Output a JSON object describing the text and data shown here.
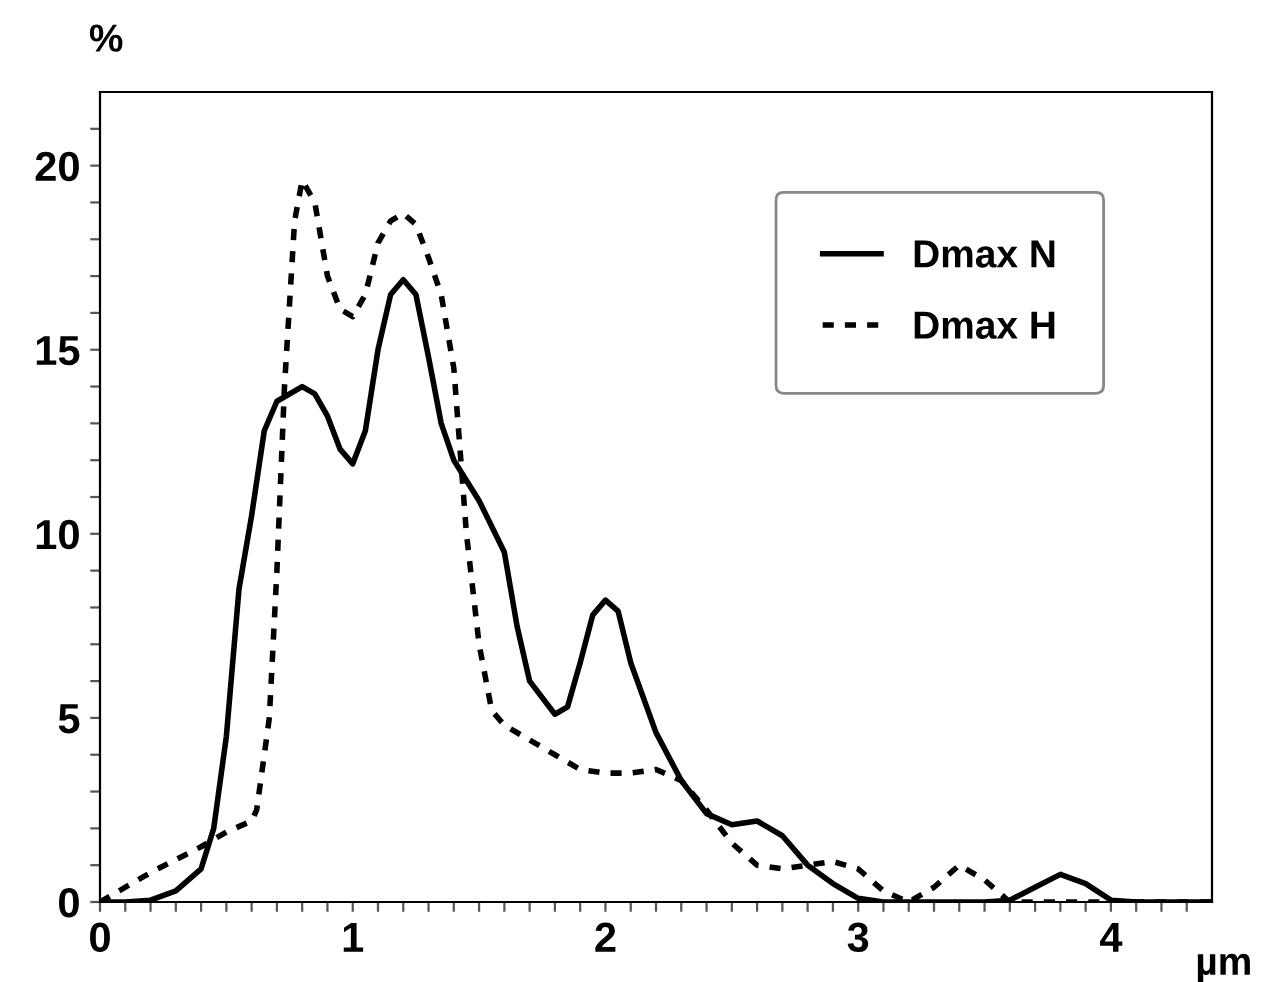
{
  "chart_data": {
    "type": "line",
    "xlabel": "µm",
    "ylabel": "%",
    "xlim": [
      0,
      4.4
    ],
    "ylim": [
      0,
      22
    ],
    "xticks": [
      0,
      {
        "value": 0.1,
        "label": null
      },
      {
        "value": 0.2,
        "label": null
      },
      {
        "value": 0.3,
        "label": null
      },
      {
        "value": 0.4,
        "label": null
      },
      {
        "value": 0.5,
        "label": null
      },
      {
        "value": 0.6,
        "label": null
      },
      {
        "value": 0.7,
        "label": null
      },
      {
        "value": 0.8,
        "label": null
      },
      {
        "value": 0.9,
        "label": null
      },
      1,
      {
        "value": 1.1,
        "label": null
      },
      {
        "value": 1.2,
        "label": null
      },
      {
        "value": 1.3,
        "label": null
      },
      {
        "value": 1.4,
        "label": null
      },
      {
        "value": 1.5,
        "label": null
      },
      {
        "value": 1.6,
        "label": null
      },
      {
        "value": 1.7,
        "label": null
      },
      {
        "value": 1.8,
        "label": null
      },
      {
        "value": 1.9,
        "label": null
      },
      2,
      {
        "value": 2.1,
        "label": null
      },
      {
        "value": 2.2,
        "label": null
      },
      {
        "value": 2.3,
        "label": null
      },
      {
        "value": 2.4,
        "label": null
      },
      {
        "value": 2.5,
        "label": null
      },
      {
        "value": 2.6,
        "label": null
      },
      {
        "value": 2.7,
        "label": null
      },
      {
        "value": 2.8,
        "label": null
      },
      {
        "value": 2.9,
        "label": null
      },
      3,
      {
        "value": 3.1,
        "label": null
      },
      {
        "value": 3.2,
        "label": null
      },
      {
        "value": 3.3,
        "label": null
      },
      {
        "value": 3.4,
        "label": null
      },
      {
        "value": 3.5,
        "label": null
      },
      {
        "value": 3.6,
        "label": null
      },
      {
        "value": 3.7,
        "label": null
      },
      {
        "value": 3.8,
        "label": null
      },
      {
        "value": 3.9,
        "label": null
      },
      4,
      {
        "value": 4.1,
        "label": null
      },
      {
        "value": 4.2,
        "label": null
      },
      {
        "value": 4.3,
        "label": null
      }
    ],
    "yticks": [
      0,
      {
        "value": 1,
        "label": null
      },
      {
        "value": 2,
        "label": null
      },
      {
        "value": 3,
        "label": null
      },
      {
        "value": 4,
        "label": null
      },
      5,
      {
        "value": 6,
        "label": null
      },
      {
        "value": 7,
        "label": null
      },
      {
        "value": 8,
        "label": null
      },
      {
        "value": 9,
        "label": null
      },
      10,
      {
        "value": 11,
        "label": null
      },
      {
        "value": 12,
        "label": null
      },
      {
        "value": 13,
        "label": null
      },
      {
        "value": 14,
        "label": null
      },
      15,
      {
        "value": 16,
        "label": null
      },
      {
        "value": 17,
        "label": null
      },
      {
        "value": 18,
        "label": null
      },
      {
        "value": 19,
        "label": null
      },
      20,
      {
        "value": 21,
        "label": null
      }
    ],
    "grid": false,
    "legend": "top right",
    "series": [
      {
        "name": "Dmax N",
        "color": "#000000",
        "line_style": "solid",
        "x": [
          0,
          0.1,
          0.2,
          0.3,
          0.4,
          0.45,
          0.5,
          0.55,
          0.6,
          0.65,
          0.7,
          0.8,
          0.85,
          0.9,
          0.95,
          1.0,
          1.05,
          1.1,
          1.15,
          1.2,
          1.25,
          1.3,
          1.35,
          1.4,
          1.5,
          1.6,
          1.65,
          1.7,
          1.8,
          1.85,
          1.9,
          1.95,
          2.0,
          2.05,
          2.1,
          2.2,
          2.3,
          2.4,
          2.5,
          2.6,
          2.7,
          2.8,
          2.9,
          3.0,
          3.1,
          3.5,
          3.6,
          3.7,
          3.8,
          3.9,
          4.0,
          4.1,
          4.4
        ],
        "values": [
          0,
          0,
          0.05,
          0.3,
          0.9,
          2,
          4.5,
          8.5,
          10.5,
          12.8,
          13.6,
          14,
          13.8,
          13.2,
          12.3,
          11.9,
          12.8,
          15,
          16.5,
          16.9,
          16.5,
          14.8,
          13,
          12,
          10.9,
          9.5,
          7.5,
          6,
          5.1,
          5.3,
          6.5,
          7.8,
          8.2,
          7.9,
          6.5,
          4.6,
          3.3,
          2.4,
          2.1,
          2.2,
          1.8,
          1.0,
          0.5,
          0.1,
          0,
          0,
          0.05,
          0.4,
          0.75,
          0.5,
          0.05,
          0,
          0
        ]
      },
      {
        "name": "Dmax H",
        "color": "#000000",
        "line_style": "dotted",
        "x": [
          0,
          0.05,
          0.2,
          0.4,
          0.5,
          0.6,
          0.62,
          0.67,
          0.7,
          0.73,
          0.77,
          0.8,
          0.85,
          0.9,
          0.95,
          1.0,
          1.05,
          1.1,
          1.15,
          1.2,
          1.25,
          1.3,
          1.35,
          1.4,
          1.45,
          1.5,
          1.55,
          1.6,
          1.7,
          1.8,
          1.9,
          2.0,
          2.1,
          2.2,
          2.3,
          2.4,
          2.5,
          2.6,
          2.7,
          2.8,
          2.9,
          3.0,
          3.1,
          3.2,
          3.3,
          3.4,
          3.5,
          3.6,
          3.7,
          4.0,
          4.4
        ],
        "values": [
          0,
          0.2,
          0.8,
          1.5,
          1.9,
          2.2,
          2.5,
          5,
          9,
          14,
          18.5,
          19.6,
          19,
          17,
          16.1,
          15.9,
          16.5,
          17.9,
          18.5,
          18.7,
          18.4,
          17.5,
          16.5,
          14.5,
          10,
          7,
          5.2,
          4.8,
          4.4,
          4,
          3.6,
          3.5,
          3.5,
          3.6,
          3.3,
          2.5,
          1.6,
          1.0,
          0.9,
          1.0,
          1.1,
          0.9,
          0.3,
          0,
          0.4,
          1.0,
          0.6,
          0,
          0,
          0,
          0
        ]
      }
    ]
  }
}
